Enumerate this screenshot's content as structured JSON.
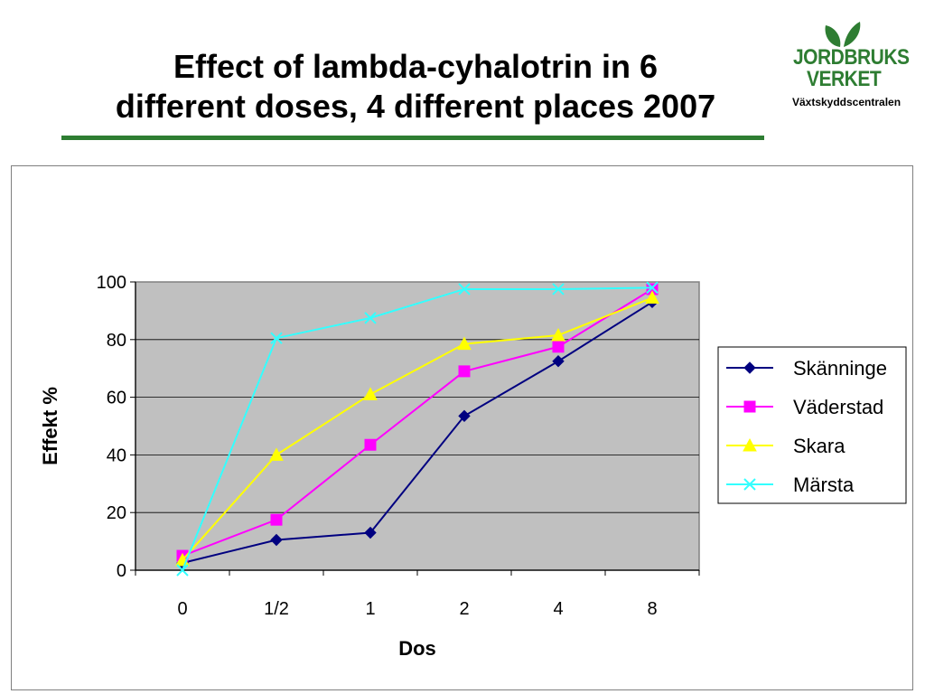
{
  "slide": {
    "title_line1": "Effect of lambda-cyhalotrin in 6",
    "title_line2": "different doses, 4 different places 2007",
    "rule_color": "#2e7d32"
  },
  "logo": {
    "line1": "JORDBRUKS",
    "line2": "VERKET",
    "subtitle": "Växtskyddscentralen",
    "color": "#2e7d32"
  },
  "chart_data": {
    "type": "line",
    "title": "",
    "xlabel": "Dos",
    "ylabel": "Effekt %",
    "categories": [
      "0",
      "1/2",
      "1",
      "2",
      "4",
      "8"
    ],
    "ylim": [
      0,
      100
    ],
    "yticks": [
      0,
      20,
      40,
      60,
      80,
      100
    ],
    "grid": true,
    "plot_background": "#c0c0c0",
    "legend_position": "right",
    "series": [
      {
        "name": "Skänninge",
        "marker": "diamond",
        "color": "#000080",
        "values": [
          2.5,
          10.5,
          13,
          53.5,
          72.5,
          93
        ]
      },
      {
        "name": "Väderstad",
        "marker": "square",
        "color": "#ff00ff",
        "values": [
          5,
          17.5,
          43.5,
          69,
          77.5,
          97.5
        ]
      },
      {
        "name": "Skara",
        "marker": "triangle",
        "color": "#ffff00",
        "values": [
          3.5,
          40,
          61,
          78.5,
          81.5,
          94.5
        ]
      },
      {
        "name": "Märsta",
        "marker": "x",
        "color": "#33ffff",
        "values": [
          0,
          80.5,
          87.5,
          97.5,
          97.5,
          98
        ]
      }
    ]
  }
}
